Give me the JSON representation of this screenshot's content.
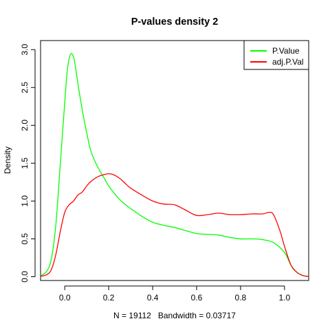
{
  "chart_data": {
    "type": "line",
    "title": "P-values density 2",
    "xlabel": "N = 19112   Bandwidth = 0.03717",
    "ylabel": "Density",
    "xlim": [
      -0.11,
      1.11
    ],
    "ylim": [
      0,
      3.0
    ],
    "x_ticks": [
      0.0,
      0.2,
      0.4,
      0.6,
      0.8,
      1.0
    ],
    "x_tick_labels": [
      "0.0",
      "0.2",
      "0.4",
      "0.6",
      "0.8",
      "1.0"
    ],
    "y_ticks": [
      0.0,
      0.5,
      1.0,
      1.5,
      2.0,
      2.5,
      3.0
    ],
    "y_tick_labels": [
      "0.0",
      "0.5",
      "1.0",
      "1.5",
      "2.0",
      "2.5",
      "3.0"
    ],
    "grid": false,
    "legend_position": "top-right",
    "series": [
      {
        "name": "P.Value",
        "color": "#00ff00",
        "x": [
          -0.11,
          -0.08,
          -0.06,
          -0.04,
          -0.02,
          0.0,
          0.01,
          0.02,
          0.03,
          0.04,
          0.05,
          0.06,
          0.08,
          0.1,
          0.12,
          0.15,
          0.18,
          0.2,
          0.25,
          0.3,
          0.35,
          0.4,
          0.45,
          0.5,
          0.55,
          0.6,
          0.65,
          0.7,
          0.75,
          0.8,
          0.85,
          0.9,
          0.95,
          1.0,
          1.03,
          1.06,
          1.09,
          1.11
        ],
        "y": [
          0.01,
          0.08,
          0.25,
          0.7,
          1.5,
          2.3,
          2.68,
          2.88,
          2.95,
          2.9,
          2.75,
          2.55,
          2.2,
          1.9,
          1.65,
          1.45,
          1.3,
          1.2,
          1.02,
          0.9,
          0.8,
          0.72,
          0.68,
          0.65,
          0.61,
          0.57,
          0.56,
          0.55,
          0.52,
          0.5,
          0.5,
          0.49,
          0.45,
          0.32,
          0.15,
          0.05,
          0.01,
          0.005
        ]
      },
      {
        "name": "adj.P.Val",
        "color": "#ff0000",
        "x": [
          -0.11,
          -0.08,
          -0.06,
          -0.04,
          -0.02,
          0.0,
          0.02,
          0.04,
          0.06,
          0.08,
          0.1,
          0.12,
          0.15,
          0.18,
          0.2,
          0.22,
          0.25,
          0.28,
          0.3,
          0.35,
          0.4,
          0.45,
          0.5,
          0.55,
          0.6,
          0.65,
          0.7,
          0.75,
          0.8,
          0.85,
          0.9,
          0.93,
          0.95,
          0.98,
          1.0,
          1.03,
          1.06,
          1.09,
          1.11
        ],
        "y": [
          0.005,
          0.03,
          0.1,
          0.3,
          0.6,
          0.85,
          0.95,
          1.0,
          1.08,
          1.12,
          1.2,
          1.26,
          1.32,
          1.35,
          1.36,
          1.35,
          1.3,
          1.22,
          1.17,
          1.08,
          1.0,
          0.96,
          0.95,
          0.88,
          0.81,
          0.82,
          0.84,
          0.82,
          0.82,
          0.83,
          0.83,
          0.85,
          0.82,
          0.6,
          0.4,
          0.15,
          0.05,
          0.01,
          0.005
        ]
      }
    ]
  }
}
